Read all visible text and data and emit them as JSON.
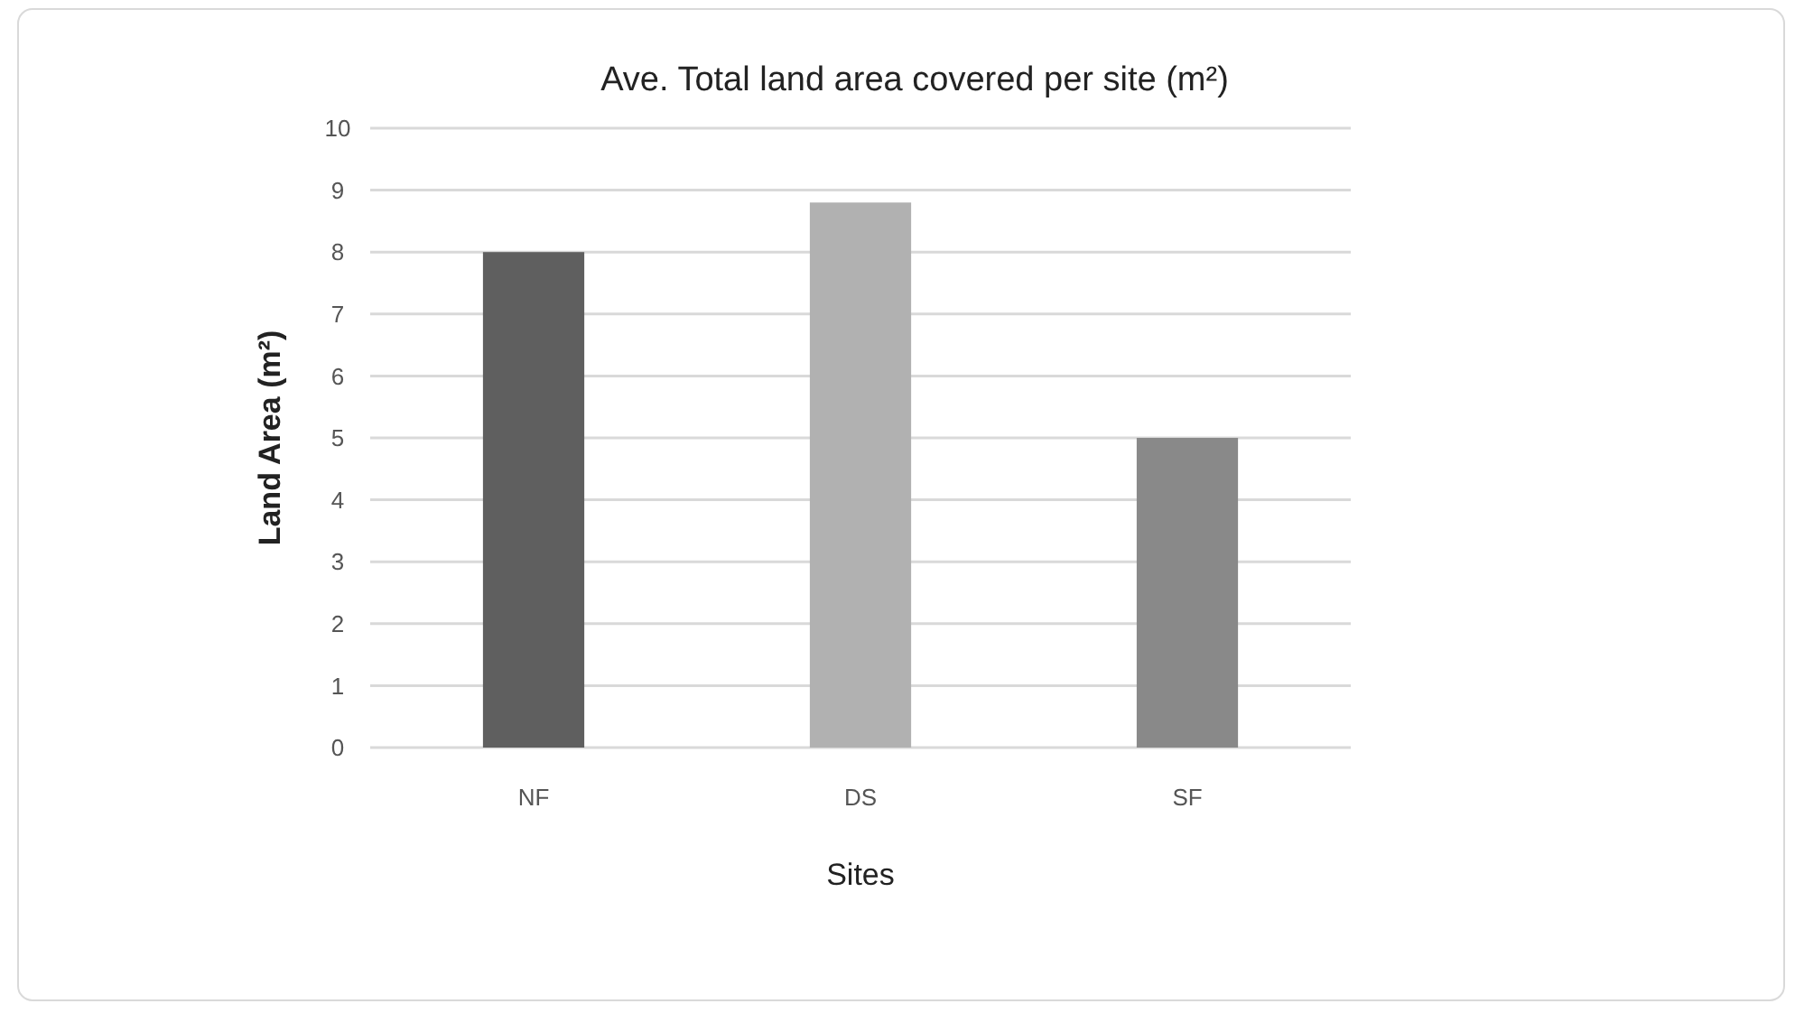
{
  "chart_data": {
    "type": "bar",
    "title": "Ave. Total land area covered per site (m²)",
    "xlabel": "Sites",
    "ylabel": "Land Area (m²)",
    "categories": [
      "NF",
      "DS",
      "SF"
    ],
    "colors": [
      "#5f5f5f",
      "#b1b1b1",
      "#898989"
    ],
    "values": [
      8,
      8.8,
      5
    ],
    "ylim": [
      0,
      10
    ],
    "yticks": [
      0,
      1,
      2,
      3,
      4,
      5,
      6,
      7,
      8,
      9,
      10
    ],
    "grid": "y"
  }
}
